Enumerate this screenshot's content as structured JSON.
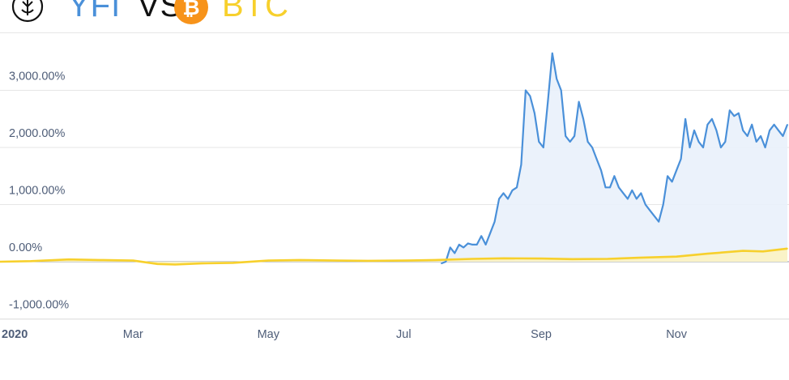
{
  "header": {
    "left_token": "YFI",
    "vs": "VS",
    "right_token": "BTC",
    "left_color": "#4a90d9",
    "right_color": "#f7d02c",
    "left_icon": "yfi-logo-icon",
    "right_icon": "bitcoin-logo-icon"
  },
  "chart_data": {
    "type": "area",
    "ylim": [
      -1100,
      4000
    ],
    "y_ticks": [
      {
        "value": 3000,
        "label": "3,000.00%"
      },
      {
        "value": 2000,
        "label": "2,000.00%"
      },
      {
        "value": 1000,
        "label": "1,000.00%"
      },
      {
        "value": 0,
        "label": "0.00%"
      },
      {
        "value": -1000,
        "label": "-1,000.00%"
      }
    ],
    "x_ticks": [
      "2020",
      "Mar",
      "May",
      "Jul",
      "Sep",
      "Nov"
    ],
    "x_range": [
      "2020-01-01",
      "2020-12-21"
    ],
    "grid": true,
    "series": [
      {
        "name": "YFI",
        "color": "#4a90d9",
        "fill": "#e9f1fb",
        "x": [
          "2020-07-18",
          "2020-07-20",
          "2020-07-22",
          "2020-07-24",
          "2020-07-26",
          "2020-07-28",
          "2020-07-30",
          "2020-08-01",
          "2020-08-03",
          "2020-08-05",
          "2020-08-07",
          "2020-08-09",
          "2020-08-11",
          "2020-08-13",
          "2020-08-15",
          "2020-08-17",
          "2020-08-19",
          "2020-08-21",
          "2020-08-23",
          "2020-08-25",
          "2020-08-27",
          "2020-08-29",
          "2020-08-31",
          "2020-09-02",
          "2020-09-04",
          "2020-09-06",
          "2020-09-08",
          "2020-09-10",
          "2020-09-12",
          "2020-09-14",
          "2020-09-16",
          "2020-09-18",
          "2020-09-20",
          "2020-09-22",
          "2020-09-24",
          "2020-09-26",
          "2020-09-28",
          "2020-09-30",
          "2020-10-02",
          "2020-10-04",
          "2020-10-06",
          "2020-10-08",
          "2020-10-10",
          "2020-10-12",
          "2020-10-14",
          "2020-10-16",
          "2020-10-18",
          "2020-10-20",
          "2020-10-22",
          "2020-10-24",
          "2020-10-26",
          "2020-10-28",
          "2020-10-30",
          "2020-11-01",
          "2020-11-03",
          "2020-11-05",
          "2020-11-07",
          "2020-11-09",
          "2020-11-11",
          "2020-11-13",
          "2020-11-15",
          "2020-11-17",
          "2020-11-19",
          "2020-11-21",
          "2020-11-23",
          "2020-11-25",
          "2020-11-27",
          "2020-11-29",
          "2020-12-01",
          "2020-12-03",
          "2020-12-05",
          "2020-12-07",
          "2020-12-09",
          "2020-12-11",
          "2020-12-13",
          "2020-12-15",
          "2020-12-17",
          "2020-12-19",
          "2020-12-21"
        ],
        "values": [
          -30,
          0,
          250,
          150,
          300,
          250,
          320,
          300,
          300,
          450,
          300,
          500,
          700,
          1100,
          1200,
          1100,
          1250,
          1300,
          1700,
          3000,
          2900,
          2600,
          2100,
          2000,
          2800,
          3650,
          3200,
          3000,
          2200,
          2100,
          2200,
          2800,
          2500,
          2100,
          2000,
          1800,
          1600,
          1300,
          1300,
          1500,
          1300,
          1200,
          1100,
          1250,
          1100,
          1200,
          1000,
          900,
          800,
          700,
          1000,
          1500,
          1400,
          1600,
          1800,
          2500,
          2000,
          2300,
          2100,
          2000,
          2400,
          2500,
          2300,
          2000,
          2100,
          2650,
          2550,
          2600,
          2300,
          2200,
          2400,
          2100,
          2200,
          2000,
          2300,
          2400,
          2300,
          2200,
          2400
        ]
      },
      {
        "name": "BTC",
        "color": "#f7d02c",
        "fill": "#fcf3c2",
        "x": [
          "2020-01-01",
          "2020-01-15",
          "2020-02-01",
          "2020-02-15",
          "2020-03-01",
          "2020-03-12",
          "2020-03-20",
          "2020-04-01",
          "2020-04-15",
          "2020-05-01",
          "2020-05-15",
          "2020-06-01",
          "2020-06-15",
          "2020-07-01",
          "2020-07-15",
          "2020-08-01",
          "2020-08-15",
          "2020-09-01",
          "2020-09-15",
          "2020-10-01",
          "2020-10-15",
          "2020-11-01",
          "2020-11-15",
          "2020-12-01",
          "2020-12-10",
          "2020-12-21"
        ],
        "values": [
          0,
          10,
          40,
          30,
          20,
          -40,
          -50,
          -30,
          -20,
          20,
          30,
          20,
          15,
          20,
          30,
          50,
          60,
          55,
          45,
          50,
          70,
          90,
          140,
          190,
          180,
          230
        ]
      }
    ]
  }
}
